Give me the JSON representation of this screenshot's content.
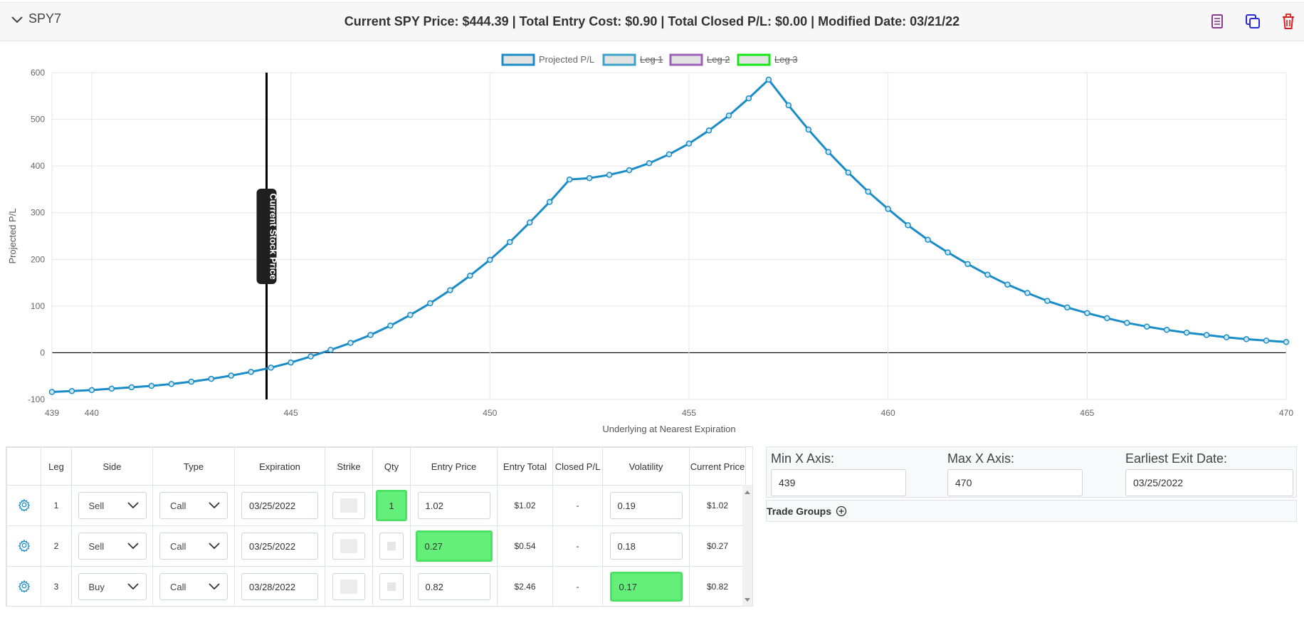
{
  "header": {
    "name": "SPY7",
    "summary": "Current SPY Price: $444.39 | Total Entry Cost: $0.90 | Total Closed P/L: $0.00 | Modified Date: 03/21/22"
  },
  "colors": {
    "projected": "#1a8cc7",
    "leg1": "#3ea3c9",
    "leg2": "#9b5fb8",
    "leg3": "#16e616",
    "highlight": "#63ef79",
    "accent_icons": [
      "#8a3b8f",
      "#2a2ad8",
      "#dc1e1e"
    ]
  },
  "actions": [
    {
      "icon": "notes-icon",
      "color": "#8a3b8f"
    },
    {
      "icon": "copy-icon",
      "color": "#2a2ad8"
    },
    {
      "icon": "trash-icon",
      "color": "#dc1e1e"
    }
  ],
  "chart_data": {
    "type": "line",
    "legend": [
      {
        "name": "Projected P/L",
        "hidden": false,
        "color": "#1a8cc7"
      },
      {
        "name": "Leg 1",
        "hidden": true,
        "color": "#3ea3c9"
      },
      {
        "name": "Leg 2",
        "hidden": true,
        "color": "#9b5fb8"
      },
      {
        "name": "Leg 3",
        "hidden": true,
        "color": "#16e616"
      }
    ],
    "xlabel": "Underlying at Nearest Expiration",
    "ylabel": "Projected P/L",
    "xlim": [
      439,
      470
    ],
    "ylim": [
      -100,
      600
    ],
    "xticks": [
      439,
      440,
      445,
      450,
      455,
      460,
      465,
      470
    ],
    "yticks": [
      -100,
      0,
      100,
      200,
      300,
      400,
      500,
      600
    ],
    "current_price": 444.39,
    "current_price_label": "Current Stock Price",
    "grid": true,
    "series": [
      {
        "name": "Projected P/L",
        "x": [
          439,
          439.5,
          440,
          440.5,
          441,
          441.5,
          442,
          442.5,
          443,
          443.5,
          444,
          444.5,
          445,
          445.5,
          446,
          446.5,
          447,
          447.5,
          448,
          448.5,
          449,
          449.5,
          450,
          450.5,
          451,
          451.5,
          452,
          452.5,
          453,
          453.5,
          454,
          454.5,
          455,
          455.5,
          456,
          456.5,
          457,
          457.5,
          458,
          458.5,
          459,
          459.5,
          460,
          460.5,
          461,
          461.5,
          462,
          462.5,
          463,
          463.5,
          464,
          464.5,
          465,
          465.5,
          466,
          466.5,
          467,
          467.5,
          468,
          468.5,
          469,
          469.5,
          470
        ],
        "y": [
          -84,
          -82,
          -80,
          -77,
          -74,
          -71,
          -67,
          -62,
          -56,
          -49,
          -41,
          -32,
          -21,
          -8,
          6,
          21,
          38,
          58,
          81,
          106,
          134,
          165,
          199,
          237,
          279,
          323,
          371,
          374,
          381,
          391,
          406,
          425,
          448,
          476,
          508,
          545,
          585,
          530,
          478,
          430,
          386,
          345,
          308,
          273,
          242,
          215,
          190,
          167,
          146,
          128,
          111,
          97,
          85,
          74,
          64,
          56,
          49,
          43,
          38,
          33,
          29,
          26,
          23
        ]
      }
    ]
  },
  "table": {
    "headers": [
      "",
      "Leg",
      "Side",
      "Type",
      "Expiration",
      "Strike",
      "Qty",
      "Entry Price",
      "Entry Total",
      "Closed P/L",
      "Volatility",
      "Current Price"
    ],
    "rows": [
      {
        "leg": "1",
        "side": "Sell",
        "type": "Call",
        "expiration": "03/25/2022",
        "qty": "1",
        "entry_price": "1.02",
        "entry_total": "$1.02",
        "closed_pl": "-",
        "volatility": "0.19",
        "current_price": "$1.02",
        "qty_hl": true,
        "entry_hl": false,
        "vol_hl": false
      },
      {
        "leg": "2",
        "side": "Sell",
        "type": "Call",
        "expiration": "03/25/2022",
        "qty": "",
        "entry_price": "0.27",
        "entry_total": "$0.54",
        "closed_pl": "-",
        "volatility": "0.18",
        "current_price": "$0.27",
        "qty_hl": false,
        "entry_hl": true,
        "vol_hl": false
      },
      {
        "leg": "3",
        "side": "Buy",
        "type": "Call",
        "expiration": "03/28/2022",
        "qty": "",
        "entry_price": "0.82",
        "entry_total": "$2.46",
        "closed_pl": "-",
        "volatility": "0.17",
        "current_price": "$0.82",
        "qty_hl": false,
        "entry_hl": false,
        "vol_hl": true
      }
    ]
  },
  "axis_settings": {
    "min_label": "Min X Axis:",
    "min_value": "439",
    "max_label": "Max X Axis:",
    "max_value": "470",
    "exit_label": "Earliest Exit Date:",
    "exit_value": "03/25/2022"
  },
  "trade_groups": {
    "label": "Trade Groups"
  }
}
